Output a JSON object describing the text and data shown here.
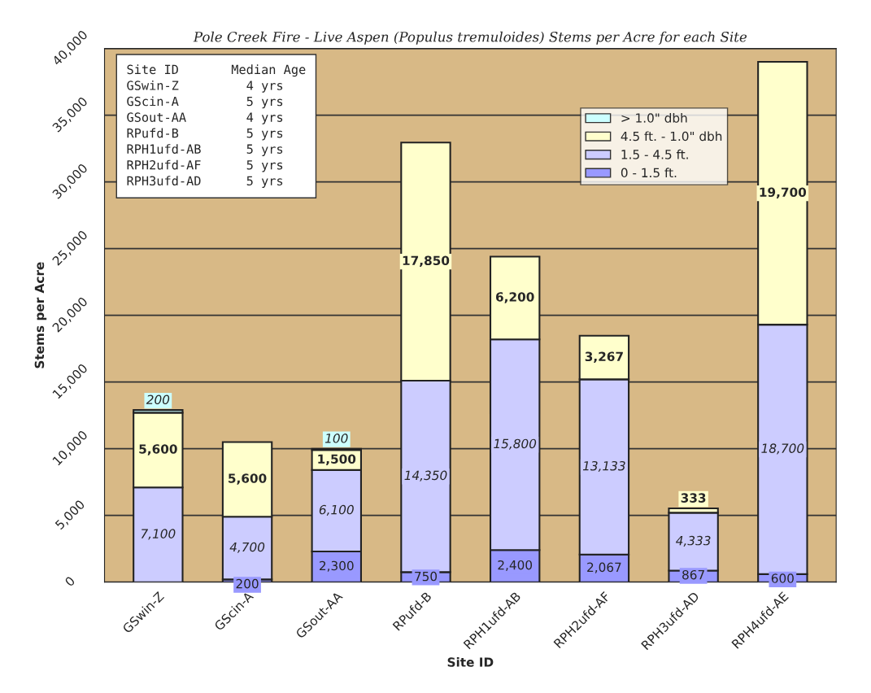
{
  "chart_data": {
    "type": "bar",
    "stacked": true,
    "title": "Pole Creek Fire - Live Aspen (Populus tremuloides) Stems per Acre for each Site",
    "xlabel": "Site ID",
    "ylabel": "Stems per Acre",
    "categories": [
      "GSwin-Z",
      "GScin-A",
      "GSout-AA",
      "RPufd-B",
      "RPH1ufd-AB",
      "RPH2ufd-AF",
      "RPH3ufd-AD",
      "RPH4ufd-AE"
    ],
    "series": [
      {
        "name": "0 - 1.5 ft.",
        "color": "#9999ff",
        "values": [
          null,
          200,
          2300,
          750,
          2400,
          2067,
          867,
          600
        ],
        "value_labels": [
          null,
          "200",
          "2,300",
          "750",
          "2,400",
          "2,067",
          "867",
          "600"
        ]
      },
      {
        "name": "1.5 - 4.5 ft.",
        "color": "#ccccff",
        "values": [
          7100,
          4700,
          6100,
          14350,
          15800,
          13133,
          4333,
          18700
        ],
        "value_labels": [
          "7,100",
          "4,700",
          "6,100",
          "14,350",
          "15,800",
          "13,133",
          "4,333",
          "18,700"
        ]
      },
      {
        "name": "4.5 ft. - 1.0\" dbh",
        "color": "#ffffcc",
        "values": [
          5600,
          5600,
          1500,
          17850,
          6200,
          3267,
          333,
          19700
        ],
        "value_labels": [
          "5,600",
          "5,600",
          "1,500",
          "17,850",
          "6,200",
          "3,267",
          "333",
          "19,700"
        ]
      },
      {
        "name": "> 1.0\" dbh",
        "color": "#ccffff",
        "values": [
          200,
          null,
          100,
          null,
          null,
          null,
          null,
          null
        ],
        "value_labels": [
          "200",
          null,
          "100",
          null,
          null,
          null,
          null,
          null
        ]
      }
    ],
    "ylim": [
      0,
      40000
    ],
    "yticks": [
      {
        "value": 0,
        "label": "0"
      },
      {
        "value": 5000,
        "label": "5,000"
      },
      {
        "value": 10000,
        "label": "10,000"
      },
      {
        "value": 15000,
        "label": "15,000"
      },
      {
        "value": 20000,
        "label": "20,000"
      },
      {
        "value": 25000,
        "label": "25,000"
      },
      {
        "value": 30000,
        "label": "30,000"
      },
      {
        "value": 35000,
        "label": "35,000"
      },
      {
        "value": 40000,
        "label": "40,000"
      }
    ],
    "grid": "y",
    "legend": "top right",
    "annotations": [
      "Site ID       Median Age",
      "GSwin-Z         4 yrs",
      "GScin-A         5 yrs",
      "GSout-AA        4 yrs",
      "RPufd-B         5 yrs",
      "RPH1ufd-AB      5 yrs",
      "RPH2ufd-AF      5 yrs",
      "RPH3ufd-AD      5 yrs"
    ]
  }
}
